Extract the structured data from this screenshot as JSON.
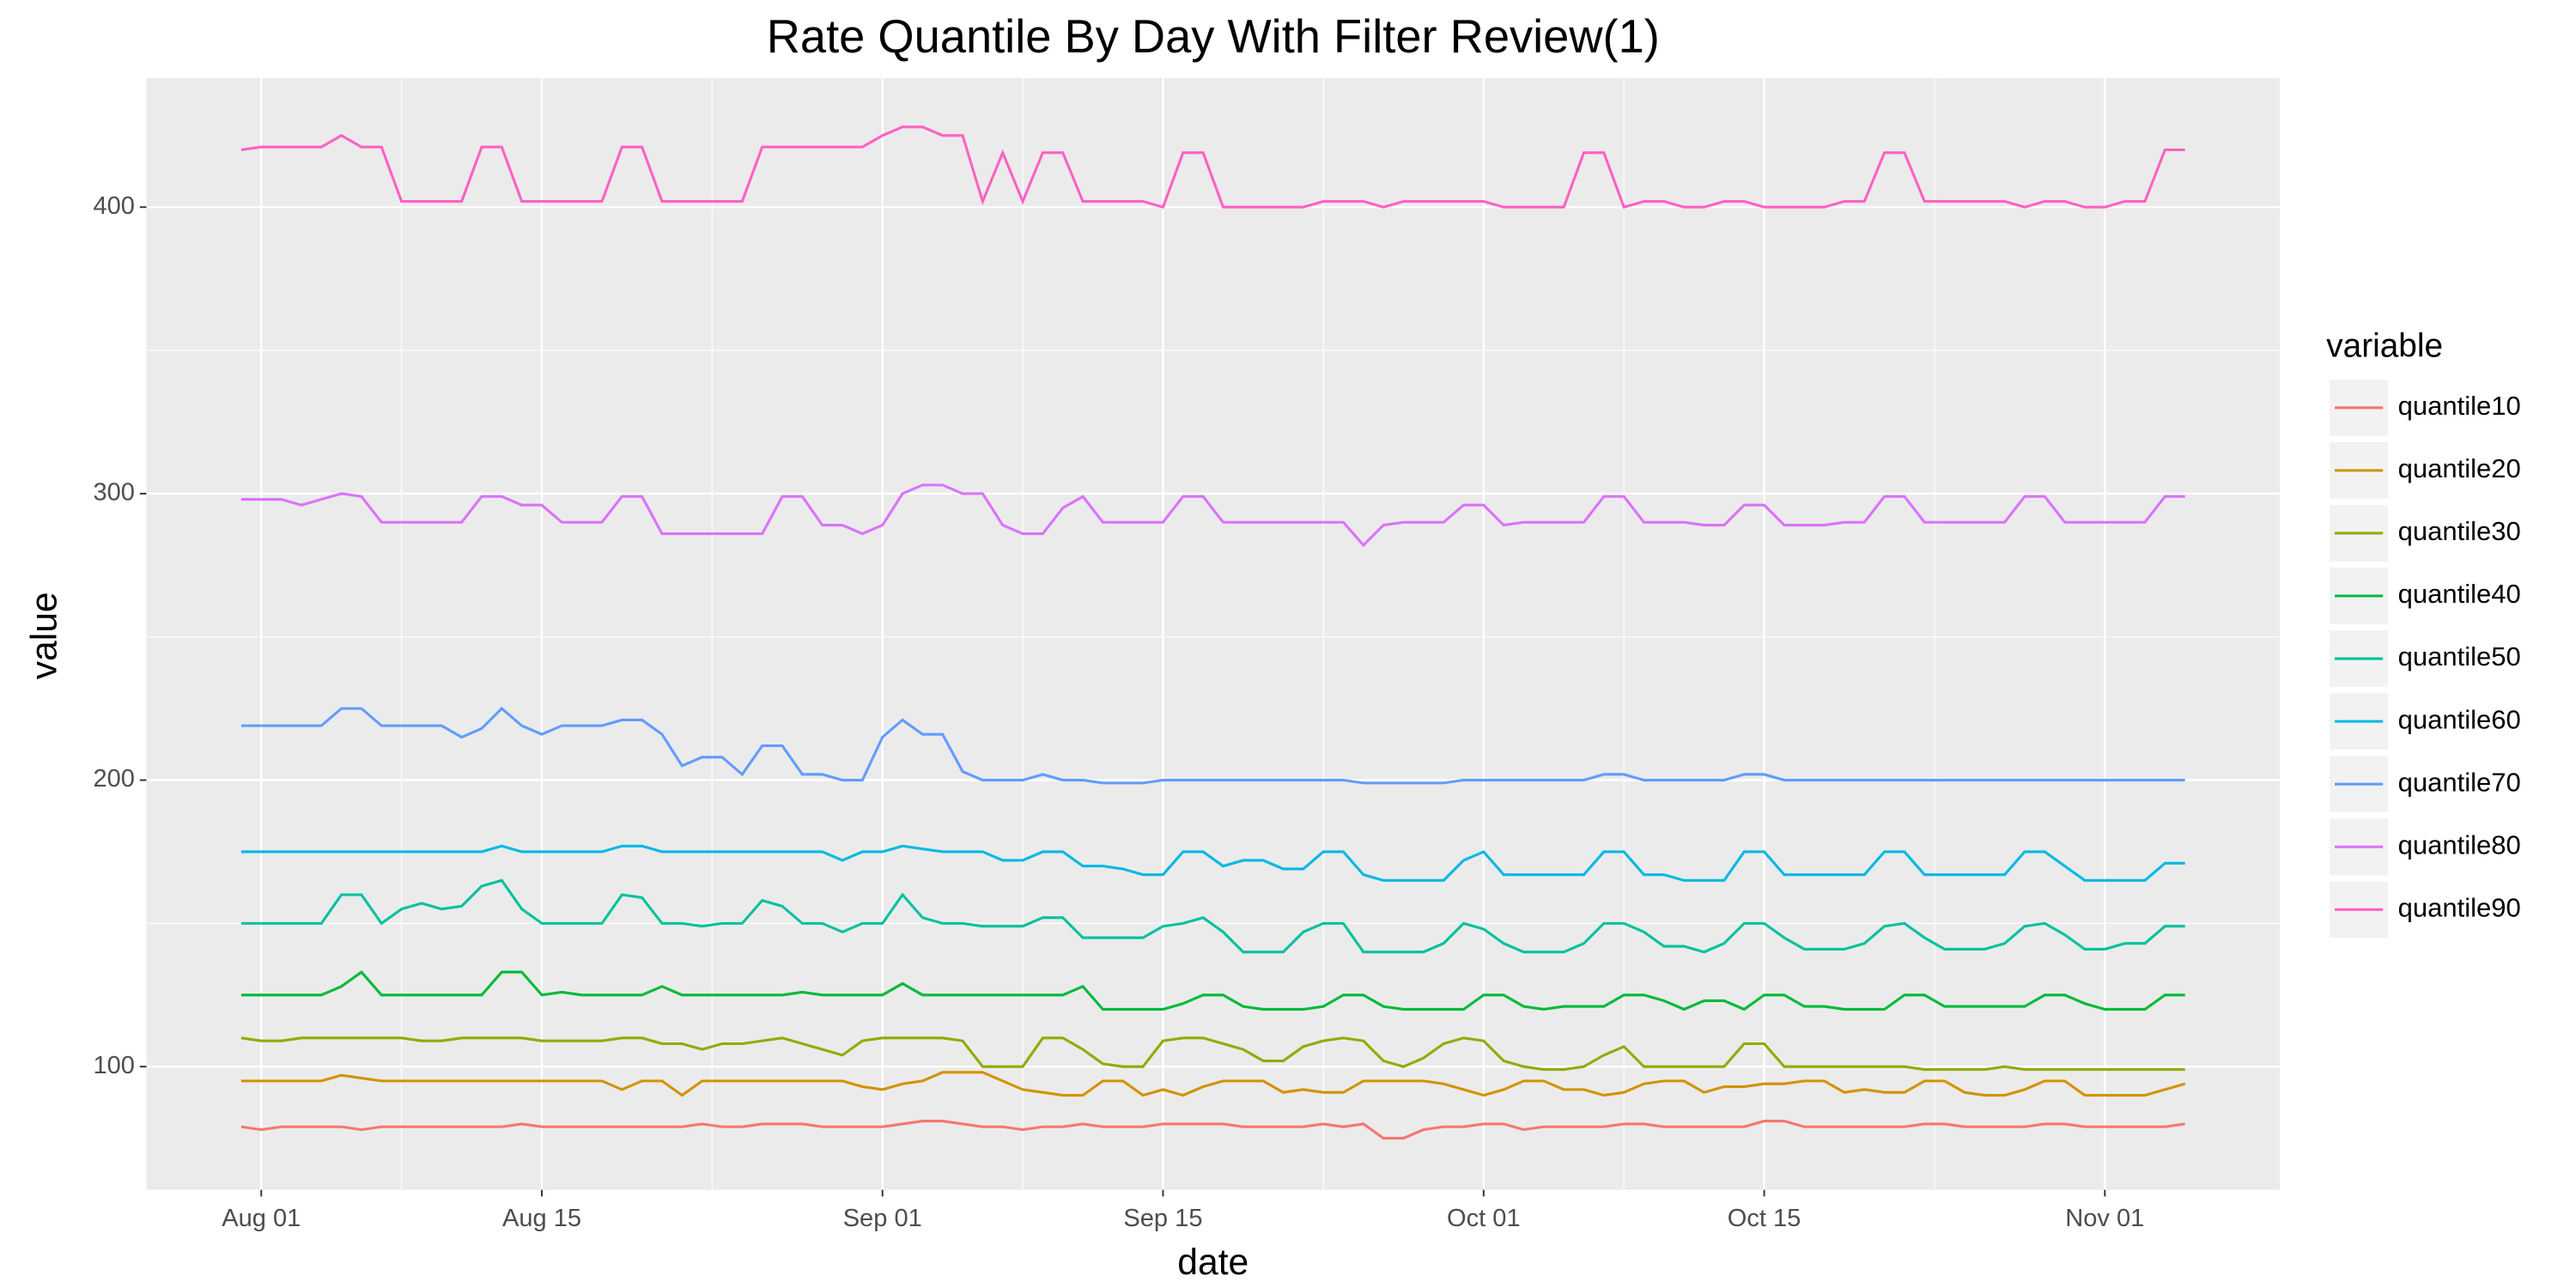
{
  "chart_data": {
    "type": "line",
    "title": "Rate Quantile By Day With Filter Review(1)",
    "x_label": "date",
    "y_label": "value",
    "legend_title": "variable",
    "legend_position": "right",
    "grid": true,
    "x": [
      "Jul 31",
      "Aug 01",
      "Aug 02",
      "Aug 03",
      "Aug 04",
      "Aug 05",
      "Aug 06",
      "Aug 07",
      "Aug 08",
      "Aug 09",
      "Aug 10",
      "Aug 11",
      "Aug 12",
      "Aug 13",
      "Aug 14",
      "Aug 15",
      "Aug 16",
      "Aug 17",
      "Aug 18",
      "Aug 19",
      "Aug 20",
      "Aug 21",
      "Aug 22",
      "Aug 23",
      "Aug 24",
      "Aug 25",
      "Aug 26",
      "Aug 27",
      "Aug 28",
      "Aug 29",
      "Aug 30",
      "Aug 31",
      "Sep 01",
      "Sep 02",
      "Sep 03",
      "Sep 04",
      "Sep 05",
      "Sep 06",
      "Sep 07",
      "Sep 08",
      "Sep 09",
      "Sep 10",
      "Sep 11",
      "Sep 12",
      "Sep 13",
      "Sep 14",
      "Sep 15",
      "Sep 16",
      "Sep 17",
      "Sep 18",
      "Sep 19",
      "Sep 20",
      "Sep 21",
      "Sep 22",
      "Sep 23",
      "Sep 24",
      "Sep 25",
      "Sep 26",
      "Sep 27",
      "Sep 28",
      "Sep 29",
      "Sep 30",
      "Oct 01",
      "Oct 02",
      "Oct 03",
      "Oct 04",
      "Oct 05",
      "Oct 06",
      "Oct 07",
      "Oct 08",
      "Oct 09",
      "Oct 10",
      "Oct 11",
      "Oct 12",
      "Oct 13",
      "Oct 14",
      "Oct 15",
      "Oct 16",
      "Oct 17",
      "Oct 18",
      "Oct 19",
      "Oct 20",
      "Oct 21",
      "Oct 22",
      "Oct 23",
      "Oct 24",
      "Oct 25",
      "Oct 26",
      "Oct 27",
      "Oct 28",
      "Oct 29",
      "Oct 30",
      "Oct 31",
      "Nov 01",
      "Nov 02",
      "Nov 03",
      "Nov 04",
      "Nov 05"
    ],
    "xticks": [
      "Aug 01",
      "Aug 15",
      "Sep 01",
      "Sep 15",
      "Oct 01",
      "Oct 15",
      "Nov 01"
    ],
    "ylim": [
      57,
      445
    ],
    "yticks": [
      100,
      200,
      300,
      400
    ],
    "series": [
      {
        "name": "quantile10",
        "color": "#F8766D",
        "values": [
          79,
          78,
          79,
          79,
          79,
          79,
          78,
          79,
          79,
          79,
          79,
          79,
          79,
          79,
          80,
          79,
          79,
          79,
          79,
          79,
          79,
          79,
          79,
          80,
          79,
          79,
          80,
          80,
          80,
          79,
          79,
          79,
          79,
          80,
          81,
          81,
          80,
          79,
          79,
          78,
          79,
          79,
          80,
          79,
          79,
          79,
          80,
          80,
          80,
          80,
          79,
          79,
          79,
          79,
          80,
          79,
          80,
          75,
          75,
          78,
          79,
          79,
          80,
          80,
          78,
          79,
          79,
          79,
          79,
          80,
          80,
          79,
          79,
          79,
          79,
          79,
          81,
          81,
          79,
          79,
          79,
          79,
          79,
          79,
          80,
          80,
          79,
          79,
          79,
          79,
          80,
          80,
          79,
          79,
          79,
          79,
          79,
          80
        ]
      },
      {
        "name": "quantile20",
        "color": "#D39200",
        "values": [
          95,
          95,
          95,
          95,
          95,
          97,
          96,
          95,
          95,
          95,
          95,
          95,
          95,
          95,
          95,
          95,
          95,
          95,
          95,
          92,
          95,
          95,
          90,
          95,
          95,
          95,
          95,
          95,
          95,
          95,
          95,
          93,
          92,
          94,
          95,
          98,
          98,
          98,
          95,
          92,
          91,
          90,
          90,
          95,
          95,
          90,
          92,
          90,
          93,
          95,
          95,
          95,
          91,
          92,
          91,
          91,
          95,
          95,
          95,
          95,
          94,
          92,
          90,
          92,
          95,
          95,
          92,
          92,
          90,
          91,
          94,
          95,
          95,
          91,
          93,
          93,
          94,
          94,
          95,
          95,
          91,
          92,
          91,
          91,
          95,
          95,
          91,
          90,
          90,
          92,
          95,
          95,
          90,
          90,
          90,
          90,
          92,
          94
        ]
      },
      {
        "name": "quantile30",
        "color": "#93AA00",
        "values": [
          110,
          109,
          109,
          110,
          110,
          110,
          110,
          110,
          110,
          109,
          109,
          110,
          110,
          110,
          110,
          109,
          109,
          109,
          109,
          110,
          110,
          108,
          108,
          106,
          108,
          108,
          109,
          110,
          108,
          106,
          104,
          109,
          110,
          110,
          110,
          110,
          109,
          100,
          100,
          100,
          110,
          110,
          106,
          101,
          100,
          100,
          109,
          110,
          110,
          108,
          106,
          102,
          102,
          107,
          109,
          110,
          109,
          102,
          100,
          103,
          108,
          110,
          109,
          102,
          100,
          99,
          99,
          100,
          104,
          107,
          100,
          100,
          100,
          100,
          100,
          108,
          108,
          100,
          100,
          100,
          100,
          100,
          100,
          100,
          99,
          99,
          99,
          99,
          100,
          99,
          99,
          99,
          99,
          99,
          99,
          99,
          99,
          99
        ]
      },
      {
        "name": "quantile40",
        "color": "#00BA38",
        "values": [
          125,
          125,
          125,
          125,
          125,
          128,
          133,
          125,
          125,
          125,
          125,
          125,
          125,
          133,
          133,
          125,
          126,
          125,
          125,
          125,
          125,
          128,
          125,
          125,
          125,
          125,
          125,
          125,
          126,
          125,
          125,
          125,
          125,
          129,
          125,
          125,
          125,
          125,
          125,
          125,
          125,
          125,
          128,
          120,
          120,
          120,
          120,
          122,
          125,
          125,
          121,
          120,
          120,
          120,
          121,
          125,
          125,
          121,
          120,
          120,
          120,
          120,
          125,
          125,
          121,
          120,
          121,
          121,
          121,
          125,
          125,
          123,
          120,
          123,
          123,
          120,
          125,
          125,
          121,
          121,
          120,
          120,
          120,
          125,
          125,
          121,
          121,
          121,
          121,
          121,
          125,
          125,
          122,
          120,
          120,
          120,
          125,
          125
        ]
      },
      {
        "name": "quantile50",
        "color": "#00C19F",
        "values": [
          150,
          150,
          150,
          150,
          150,
          160,
          160,
          150,
          155,
          157,
          155,
          156,
          163,
          165,
          155,
          150,
          150,
          150,
          150,
          160,
          159,
          150,
          150,
          149,
          150,
          150,
          158,
          156,
          150,
          150,
          147,
          150,
          150,
          160,
          152,
          150,
          150,
          149,
          149,
          149,
          152,
          152,
          145,
          145,
          145,
          145,
          149,
          150,
          152,
          147,
          140,
          140,
          140,
          147,
          150,
          150,
          140,
          140,
          140,
          140,
          143,
          150,
          148,
          143,
          140,
          140,
          140,
          143,
          150,
          150,
          147,
          142,
          142,
          140,
          143,
          150,
          150,
          145,
          141,
          141,
          141,
          143,
          149,
          150,
          145,
          141,
          141,
          141,
          143,
          149,
          150,
          146,
          141,
          141,
          143,
          143,
          149,
          149
        ]
      },
      {
        "name": "quantile60",
        "color": "#00B9E3",
        "values": [
          175,
          175,
          175,
          175,
          175,
          175,
          175,
          175,
          175,
          175,
          175,
          175,
          175,
          177,
          175,
          175,
          175,
          175,
          175,
          177,
          177,
          175,
          175,
          175,
          175,
          175,
          175,
          175,
          175,
          175,
          172,
          175,
          175,
          177,
          176,
          175,
          175,
          175,
          172,
          172,
          175,
          175,
          170,
          170,
          169,
          167,
          167,
          175,
          175,
          170,
          172,
          172,
          169,
          169,
          175,
          175,
          167,
          165,
          165,
          165,
          165,
          172,
          175,
          167,
          167,
          167,
          167,
          167,
          175,
          175,
          167,
          167,
          165,
          165,
          165,
          175,
          175,
          167,
          167,
          167,
          167,
          167,
          175,
          175,
          167,
          167,
          167,
          167,
          167,
          175,
          175,
          170,
          165,
          165,
          165,
          165,
          171,
          171
        ]
      },
      {
        "name": "quantile70",
        "color": "#619CFF",
        "values": [
          219,
          219,
          219,
          219,
          219,
          225,
          225,
          219,
          219,
          219,
          219,
          215,
          218,
          225,
          219,
          216,
          219,
          219,
          219,
          221,
          221,
          216,
          205,
          208,
          208,
          202,
          212,
          212,
          202,
          202,
          200,
          200,
          215,
          221,
          216,
          216,
          203,
          200,
          200,
          200,
          202,
          200,
          200,
          199,
          199,
          199,
          200,
          200,
          200,
          200,
          200,
          200,
          200,
          200,
          200,
          200,
          199,
          199,
          199,
          199,
          199,
          200,
          200,
          200,
          200,
          200,
          200,
          200,
          202,
          202,
          200,
          200,
          200,
          200,
          200,
          202,
          202,
          200,
          200,
          200,
          200,
          200,
          200,
          200,
          200,
          200,
          200,
          200,
          200,
          200,
          200,
          200,
          200,
          200,
          200,
          200,
          200,
          200
        ]
      },
      {
        "name": "quantile80",
        "color": "#DB72FB",
        "values": [
          298,
          298,
          298,
          296,
          298,
          300,
          299,
          290,
          290,
          290,
          290,
          290,
          299,
          299,
          296,
          296,
          290,
          290,
          290,
          299,
          299,
          286,
          286,
          286,
          286,
          286,
          286,
          299,
          299,
          289,
          289,
          286,
          289,
          300,
          303,
          303,
          300,
          300,
          289,
          286,
          286,
          295,
          299,
          290,
          290,
          290,
          290,
          299,
          299,
          290,
          290,
          290,
          290,
          290,
          290,
          290,
          282,
          289,
          290,
          290,
          290,
          296,
          296,
          289,
          290,
          290,
          290,
          290,
          299,
          299,
          290,
          290,
          290,
          289,
          289,
          296,
          296,
          289,
          289,
          289,
          290,
          290,
          299,
          299,
          290,
          290,
          290,
          290,
          290,
          299,
          299,
          290,
          290,
          290,
          290,
          290,
          299,
          299
        ]
      },
      {
        "name": "quantile90",
        "color": "#FF61C3",
        "values": [
          420,
          421,
          421,
          421,
          421,
          425,
          421,
          421,
          402,
          402,
          402,
          402,
          421,
          421,
          402,
          402,
          402,
          402,
          402,
          421,
          421,
          402,
          402,
          402,
          402,
          402,
          421,
          421,
          421,
          421,
          421,
          421,
          425,
          428,
          428,
          425,
          425,
          402,
          419,
          402,
          419,
          419,
          402,
          402,
          402,
          402,
          400,
          419,
          419,
          400,
          400,
          400,
          400,
          400,
          402,
          402,
          402,
          400,
          402,
          402,
          402,
          402,
          402,
          400,
          400,
          400,
          400,
          419,
          419,
          400,
          402,
          402,
          400,
          400,
          402,
          402,
          400,
          400,
          400,
          400,
          402,
          402,
          419,
          419,
          402,
          402,
          402,
          402,
          402,
          400,
          402,
          402,
          400,
          400,
          402,
          402,
          420,
          420
        ]
      }
    ]
  }
}
